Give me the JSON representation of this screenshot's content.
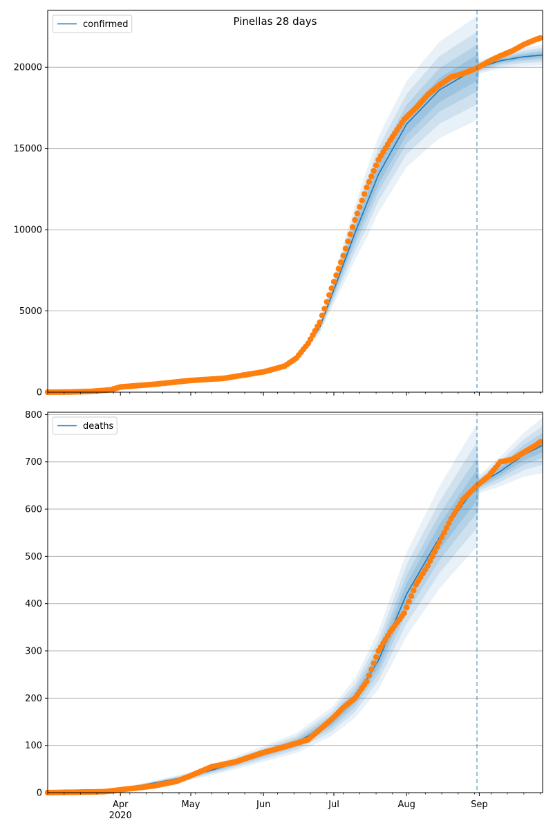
{
  "figure": {
    "title": "Pinellas 28 days"
  },
  "colors": {
    "model": "#1f77b4",
    "observed": "#ff7f0e",
    "band": "#1f77b4",
    "grid": "#b0b0b0",
    "forecast_line": "#1f77b4"
  },
  "x_axis": {
    "start": "2020-03-01",
    "end": "2020-09-28",
    "forecast_start": "2020-08-31",
    "month_ticks": [
      {
        "date": "2020-04-01",
        "label": "Apr",
        "sublabel": "2020"
      },
      {
        "date": "2020-05-01",
        "label": "May",
        "sublabel": ""
      },
      {
        "date": "2020-06-01",
        "label": "Jun",
        "sublabel": ""
      },
      {
        "date": "2020-07-01",
        "label": "Jul",
        "sublabel": ""
      },
      {
        "date": "2020-08-01",
        "label": "Aug",
        "sublabel": ""
      },
      {
        "date": "2020-09-01",
        "label": "Sep",
        "sublabel": ""
      }
    ]
  },
  "chart_data": [
    {
      "type": "line",
      "series_name": "confirmed",
      "legend_label": "confirmed",
      "legend_position": "upper left",
      "ylim": [
        0,
        23500
      ],
      "yticks": [
        0,
        5000,
        10000,
        15000,
        20000
      ],
      "grid": "horizontal",
      "model": [
        [
          "2020-03-01",
          0
        ],
        [
          "2020-03-15",
          30
        ],
        [
          "2020-04-01",
          300
        ],
        [
          "2020-04-15",
          500
        ],
        [
          "2020-05-01",
          700
        ],
        [
          "2020-05-15",
          850
        ],
        [
          "2020-06-01",
          1150
        ],
        [
          "2020-06-15",
          2000
        ],
        [
          "2020-06-25",
          4000
        ],
        [
          "2020-07-01",
          6300
        ],
        [
          "2020-07-10",
          9800
        ],
        [
          "2020-07-20",
          13400
        ],
        [
          "2020-08-01",
          16500
        ],
        [
          "2020-08-15",
          18600
        ],
        [
          "2020-08-31",
          19950
        ],
        [
          "2020-09-10",
          20400
        ],
        [
          "2020-09-20",
          20650
        ],
        [
          "2020-09-28",
          20750
        ]
      ],
      "band_width": [
        [
          "2020-03-01",
          0
        ],
        [
          "2020-06-01",
          0.08
        ],
        [
          "2020-06-25",
          0.1
        ],
        [
          "2020-07-05",
          0.16
        ],
        [
          "2020-07-15",
          0.18
        ],
        [
          "2020-08-01",
          0.16
        ],
        [
          "2020-08-31",
          0.16
        ],
        [
          "2020-09-01",
          0.02
        ],
        [
          "2020-09-28",
          0.03
        ]
      ],
      "observed": [
        [
          "2020-03-01",
          0
        ],
        [
          "2020-03-10",
          10
        ],
        [
          "2020-03-20",
          50
        ],
        [
          "2020-03-28",
          150
        ],
        [
          "2020-04-01",
          320
        ],
        [
          "2020-04-15",
          480
        ],
        [
          "2020-05-01",
          720
        ],
        [
          "2020-05-15",
          850
        ],
        [
          "2020-06-01",
          1250
        ],
        [
          "2020-06-10",
          1600
        ],
        [
          "2020-06-15",
          2100
        ],
        [
          "2020-06-20",
          3000
        ],
        [
          "2020-06-25",
          4300
        ],
        [
          "2020-06-30",
          6400
        ],
        [
          "2020-07-05",
          8400
        ],
        [
          "2020-07-10",
          10600
        ],
        [
          "2020-07-15",
          12600
        ],
        [
          "2020-07-20",
          14300
        ],
        [
          "2020-07-25",
          15500
        ],
        [
          "2020-07-31",
          16800
        ],
        [
          "2020-08-05",
          17500
        ],
        [
          "2020-08-10",
          18300
        ],
        [
          "2020-08-15",
          18900
        ],
        [
          "2020-08-20",
          19400
        ],
        [
          "2020-08-25",
          19600
        ],
        [
          "2020-08-31",
          19950
        ],
        [
          "2020-09-05",
          20350
        ],
        [
          "2020-09-10",
          20700
        ],
        [
          "2020-09-15",
          21000
        ],
        [
          "2020-09-20",
          21400
        ],
        [
          "2020-09-25",
          21700
        ],
        [
          "2020-09-27",
          21800
        ]
      ]
    },
    {
      "type": "line",
      "series_name": "deaths",
      "legend_label": "deaths",
      "legend_position": "upper left",
      "ylim": [
        0,
        805
      ],
      "yticks": [
        0,
        100,
        200,
        300,
        400,
        500,
        600,
        700,
        800
      ],
      "grid": "horizontal",
      "model": [
        [
          "2020-03-01",
          0
        ],
        [
          "2020-03-20",
          2
        ],
        [
          "2020-04-01",
          8
        ],
        [
          "2020-04-15",
          20
        ],
        [
          "2020-05-01",
          35
        ],
        [
          "2020-05-15",
          55
        ],
        [
          "2020-06-01",
          82
        ],
        [
          "2020-06-15",
          105
        ],
        [
          "2020-06-30",
          150
        ],
        [
          "2020-07-10",
          200
        ],
        [
          "2020-07-20",
          280
        ],
        [
          "2020-08-01",
          420
        ],
        [
          "2020-08-15",
          540
        ],
        [
          "2020-08-25",
          610
        ],
        [
          "2020-08-31",
          650
        ],
        [
          "2020-09-10",
          680
        ],
        [
          "2020-09-20",
          715
        ],
        [
          "2020-09-28",
          735
        ]
      ],
      "band_width": [
        [
          "2020-03-01",
          0
        ],
        [
          "2020-04-15",
          0.25
        ],
        [
          "2020-06-01",
          0.2
        ],
        [
          "2020-07-01",
          0.2
        ],
        [
          "2020-07-20",
          0.22
        ],
        [
          "2020-08-15",
          0.2
        ],
        [
          "2020-08-31",
          0.2
        ],
        [
          "2020-09-01",
          0.03
        ],
        [
          "2020-09-28",
          0.08
        ]
      ],
      "observed": [
        [
          "2020-03-01",
          0
        ],
        [
          "2020-03-25",
          2
        ],
        [
          "2020-04-01",
          6
        ],
        [
          "2020-04-15",
          14
        ],
        [
          "2020-04-25",
          24
        ],
        [
          "2020-05-01",
          36
        ],
        [
          "2020-05-10",
          55
        ],
        [
          "2020-05-20",
          65
        ],
        [
          "2020-06-01",
          85
        ],
        [
          "2020-06-10",
          97
        ],
        [
          "2020-06-20",
          112
        ],
        [
          "2020-06-30",
          155
        ],
        [
          "2020-07-05",
          180
        ],
        [
          "2020-07-10",
          200
        ],
        [
          "2020-07-15",
          235
        ],
        [
          "2020-07-20",
          300
        ],
        [
          "2020-07-25",
          340
        ],
        [
          "2020-07-31",
          380
        ],
        [
          "2020-08-05",
          440
        ],
        [
          "2020-08-10",
          480
        ],
        [
          "2020-08-15",
          530
        ],
        [
          "2020-08-20",
          580
        ],
        [
          "2020-08-25",
          620
        ],
        [
          "2020-08-31",
          650
        ],
        [
          "2020-09-05",
          670
        ],
        [
          "2020-09-10",
          700
        ],
        [
          "2020-09-15",
          705
        ],
        [
          "2020-09-20",
          720
        ],
        [
          "2020-09-25",
          735
        ],
        [
          "2020-09-27",
          742
        ]
      ]
    }
  ]
}
